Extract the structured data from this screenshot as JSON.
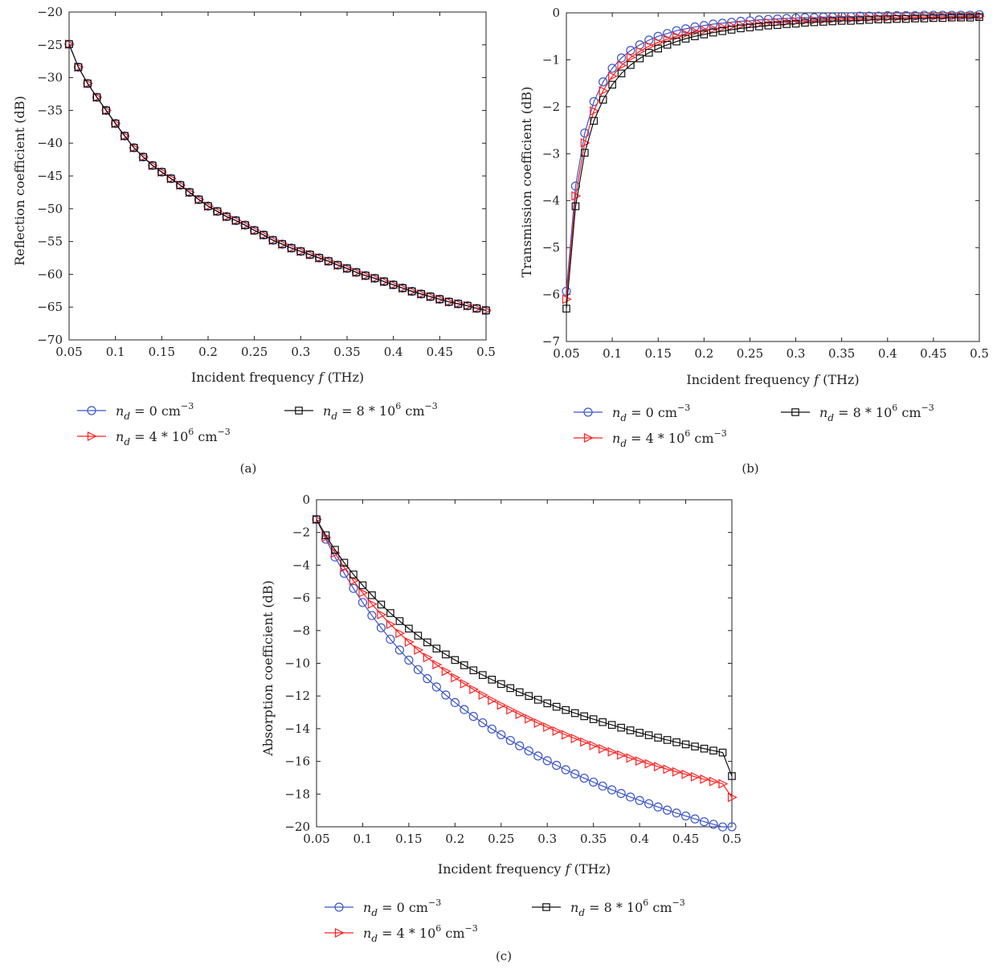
{
  "colors": {
    "nd0": "#3b55c9",
    "nd4": "#ff2020",
    "nd8": "#111111",
    "axis": "#222222"
  },
  "legend": {
    "var": "n",
    "sub": "d",
    "nd0": {
      "eq": " = 0 cm",
      "sup": "−3",
      "tail": ""
    },
    "nd4": {
      "eq": " = 4 * 10",
      "sup": "6",
      "tail": " cm",
      "sup2": "−3"
    },
    "nd8": {
      "eq": " = 8 * 10",
      "sup": "6",
      "tail": " cm",
      "sup2": "−3"
    }
  },
  "chart_data": [
    {
      "type": "line",
      "panel": "(a)",
      "xlabel": "Incident frequency f (THz)",
      "ylabel": "Reflection coefficient (dB)",
      "xlim": [
        0.05,
        0.5
      ],
      "ylim": [
        -70,
        -20
      ],
      "xticks": [
        "0.05",
        "0.1",
        "0.15",
        "0.2",
        "0.25",
        "0.3",
        "0.35",
        "0.4",
        "0.45",
        "0.5"
      ],
      "yticks": [
        "−20",
        "−25",
        "−30",
        "−35",
        "−40",
        "−45",
        "−50",
        "−55",
        "−60",
        "−65",
        "−70"
      ],
      "legend_position": "below",
      "x": [
        0.05,
        0.06,
        0.07,
        0.08,
        0.09,
        0.1,
        0.11,
        0.12,
        0.13,
        0.14,
        0.15,
        0.16,
        0.17,
        0.18,
        0.19,
        0.2,
        0.21,
        0.22,
        0.23,
        0.24,
        0.25,
        0.26,
        0.27,
        0.28,
        0.29,
        0.3,
        0.31,
        0.32,
        0.33,
        0.34,
        0.35,
        0.36,
        0.37,
        0.38,
        0.39,
        0.4,
        0.41,
        0.42,
        0.43,
        0.44,
        0.45,
        0.46,
        0.47,
        0.48,
        0.49,
        0.5
      ],
      "series": [
        {
          "name": "n_d = 0 cm^-3",
          "key": "nd0",
          "marker": "circle",
          "values": [
            -24.9,
            -28.4,
            -30.9,
            -33.0,
            -35.0,
            -37.0,
            -38.9,
            -40.7,
            -42.1,
            -43.4,
            -44.4,
            -45.4,
            -46.4,
            -47.5,
            -48.6,
            -49.6,
            -50.4,
            -51.2,
            -51.8,
            -52.5,
            -53.3,
            -54.0,
            -54.8,
            -55.4,
            -56.0,
            -56.5,
            -57.0,
            -57.5,
            -58.0,
            -58.6,
            -59.1,
            -59.7,
            -60.2,
            -60.6,
            -61.1,
            -61.6,
            -62.1,
            -62.6,
            -63.0,
            -63.4,
            -63.8,
            -64.2,
            -64.5,
            -64.8,
            -65.2,
            -65.5
          ]
        },
        {
          "name": "n_d = 4 * 10^6 cm^-3",
          "key": "nd4",
          "marker": "triangle-right",
          "values": [
            -24.9,
            -28.4,
            -30.9,
            -33.0,
            -35.0,
            -37.0,
            -38.9,
            -40.7,
            -42.1,
            -43.4,
            -44.4,
            -45.4,
            -46.4,
            -47.5,
            -48.6,
            -49.6,
            -50.4,
            -51.2,
            -51.8,
            -52.5,
            -53.3,
            -54.0,
            -54.8,
            -55.4,
            -56.0,
            -56.5,
            -57.0,
            -57.5,
            -58.0,
            -58.6,
            -59.1,
            -59.7,
            -60.2,
            -60.6,
            -61.1,
            -61.6,
            -62.1,
            -62.6,
            -63.0,
            -63.4,
            -63.8,
            -64.2,
            -64.5,
            -64.8,
            -65.2,
            -65.5
          ]
        },
        {
          "name": "n_d = 8 * 10^6 cm^-3",
          "key": "nd8",
          "marker": "square",
          "values": [
            -24.9,
            -28.4,
            -30.9,
            -33.0,
            -35.0,
            -37.0,
            -38.9,
            -40.7,
            -42.1,
            -43.4,
            -44.4,
            -45.4,
            -46.4,
            -47.5,
            -48.6,
            -49.6,
            -50.4,
            -51.2,
            -51.8,
            -52.5,
            -53.3,
            -54.0,
            -54.8,
            -55.4,
            -56.0,
            -56.5,
            -57.0,
            -57.5,
            -58.0,
            -58.6,
            -59.1,
            -59.7,
            -60.2,
            -60.6,
            -61.1,
            -61.6,
            -62.1,
            -62.6,
            -63.0,
            -63.4,
            -63.8,
            -64.2,
            -64.5,
            -64.8,
            -65.2,
            -65.5
          ]
        }
      ]
    },
    {
      "type": "line",
      "panel": "(b)",
      "xlabel": "Incident frequency f (THz)",
      "ylabel": "Transmission coefficient (dB)",
      "xlim": [
        0.05,
        0.5
      ],
      "ylim": [
        -7,
        0
      ],
      "xticks": [
        "0.05",
        "0.1",
        "0.15",
        "0.2",
        "0.25",
        "0.3",
        "0.35",
        "0.4",
        "0.45",
        "0.5"
      ],
      "yticks": [
        "0",
        "−1",
        "−2",
        "−3",
        "−4",
        "−5",
        "−6",
        "−7"
      ],
      "legend_position": "below",
      "x": [
        0.05,
        0.06,
        0.07,
        0.08,
        0.09,
        0.1,
        0.11,
        0.12,
        0.13,
        0.14,
        0.15,
        0.16,
        0.17,
        0.18,
        0.19,
        0.2,
        0.21,
        0.22,
        0.23,
        0.24,
        0.25,
        0.26,
        0.27,
        0.28,
        0.29,
        0.3,
        0.31,
        0.32,
        0.33,
        0.34,
        0.35,
        0.36,
        0.37,
        0.38,
        0.39,
        0.4,
        0.41,
        0.42,
        0.43,
        0.44,
        0.45,
        0.46,
        0.47,
        0.48,
        0.49,
        0.5
      ],
      "series": [
        {
          "name": "n_d = 0 cm^-3",
          "key": "nd0",
          "marker": "circle",
          "values": [
            -5.93,
            -3.69,
            -2.56,
            -1.89,
            -1.47,
            -1.18,
            -0.96,
            -0.8,
            -0.68,
            -0.58,
            -0.5,
            -0.44,
            -0.38,
            -0.34,
            -0.3,
            -0.27,
            -0.24,
            -0.22,
            -0.2,
            -0.18,
            -0.17,
            -0.15,
            -0.14,
            -0.13,
            -0.12,
            -0.11,
            -0.1,
            -0.1,
            -0.09,
            -0.09,
            -0.08,
            -0.08,
            -0.07,
            -0.07,
            -0.07,
            -0.06,
            -0.06,
            -0.06,
            -0.06,
            -0.05,
            -0.05,
            -0.05,
            -0.05,
            -0.05,
            -0.05,
            -0.04
          ]
        },
        {
          "name": "n_d = 4 * 10^6 cm^-3",
          "key": "nd4",
          "marker": "triangle-right",
          "values": [
            -6.1,
            -3.9,
            -2.77,
            -2.09,
            -1.66,
            -1.35,
            -1.12,
            -0.95,
            -0.82,
            -0.71,
            -0.63,
            -0.56,
            -0.5,
            -0.45,
            -0.4,
            -0.37,
            -0.34,
            -0.31,
            -0.28,
            -0.26,
            -0.24,
            -0.23,
            -0.21,
            -0.2,
            -0.19,
            -0.18,
            -0.17,
            -0.16,
            -0.15,
            -0.14,
            -0.13,
            -0.13,
            -0.12,
            -0.11,
            -0.11,
            -0.1,
            -0.1,
            -0.1,
            -0.09,
            -0.09,
            -0.09,
            -0.08,
            -0.08,
            -0.08,
            -0.07,
            -0.07
          ]
        },
        {
          "name": "n_d = 8 * 10^6 cm^-3",
          "key": "nd8",
          "marker": "square",
          "values": [
            -6.3,
            -4.12,
            -2.98,
            -2.3,
            -1.85,
            -1.53,
            -1.29,
            -1.11,
            -0.97,
            -0.85,
            -0.76,
            -0.68,
            -0.61,
            -0.55,
            -0.5,
            -0.46,
            -0.42,
            -0.39,
            -0.36,
            -0.33,
            -0.31,
            -0.29,
            -0.27,
            -0.26,
            -0.24,
            -0.23,
            -0.21,
            -0.2,
            -0.19,
            -0.18,
            -0.17,
            -0.17,
            -0.16,
            -0.15,
            -0.14,
            -0.14,
            -0.13,
            -0.13,
            -0.12,
            -0.12,
            -0.11,
            -0.11,
            -0.1,
            -0.1,
            -0.1,
            -0.09
          ]
        }
      ]
    },
    {
      "type": "line",
      "panel": "(c)",
      "xlabel": "Incident frequency f (THz)",
      "ylabel": "Absorption coefficient (dB)",
      "xlim": [
        0.05,
        0.5
      ],
      "ylim": [
        -20,
        0
      ],
      "xticks": [
        "0.05",
        "0.1",
        "0.15",
        "0.2",
        "0.25",
        "0.3",
        "0.35",
        "0.4",
        "0.45",
        "0.5"
      ],
      "yticks": [
        "0",
        "−2",
        "−4",
        "−6",
        "−8",
        "−10",
        "−12",
        "−14",
        "−16",
        "−18",
        "−20"
      ],
      "legend_position": "below",
      "x": [
        0.05,
        0.06,
        0.07,
        0.08,
        0.09,
        0.1,
        0.11,
        0.12,
        0.13,
        0.14,
        0.15,
        0.16,
        0.17,
        0.18,
        0.19,
        0.2,
        0.21,
        0.22,
        0.23,
        0.24,
        0.25,
        0.26,
        0.27,
        0.28,
        0.29,
        0.3,
        0.31,
        0.32,
        0.33,
        0.34,
        0.35,
        0.36,
        0.37,
        0.38,
        0.39,
        0.4,
        0.41,
        0.42,
        0.43,
        0.44,
        0.45,
        0.46,
        0.47,
        0.48,
        0.49,
        0.5
      ],
      "series": [
        {
          "name": "n_d = 0 cm^-3",
          "key": "nd0",
          "marker": "circle",
          "values": [
            -1.2,
            -2.41,
            -3.5,
            -4.5,
            -5.42,
            -6.28,
            -7.08,
            -7.83,
            -8.53,
            -9.19,
            -9.81,
            -10.39,
            -10.94,
            -11.45,
            -11.94,
            -12.4,
            -12.83,
            -13.25,
            -13.64,
            -14.02,
            -14.37,
            -14.72,
            -15.05,
            -15.36,
            -15.67,
            -15.96,
            -16.24,
            -16.51,
            -16.77,
            -17.03,
            -17.27,
            -17.51,
            -17.74,
            -17.96,
            -18.18,
            -18.39,
            -18.59,
            -18.79,
            -18.98,
            -19.16,
            -19.34,
            -19.52,
            -19.69,
            -19.85,
            -20.01,
            -20.0
          ]
        },
        {
          "name": "n_d = 4 * 10^6 cm^-3",
          "key": "nd4",
          "marker": "triangle-right",
          "values": [
            -1.2,
            -2.29,
            -3.26,
            -4.15,
            -4.95,
            -5.69,
            -6.38,
            -7.02,
            -7.62,
            -8.17,
            -8.7,
            -9.19,
            -9.65,
            -10.08,
            -10.49,
            -10.88,
            -11.25,
            -11.6,
            -11.94,
            -12.26,
            -12.56,
            -12.85,
            -13.13,
            -13.4,
            -13.66,
            -13.91,
            -14.15,
            -14.38,
            -14.6,
            -14.82,
            -15.03,
            -15.23,
            -15.42,
            -15.61,
            -15.8,
            -15.98,
            -16.15,
            -16.32,
            -16.48,
            -16.64,
            -16.79,
            -16.94,
            -17.09,
            -17.23,
            -17.37,
            -18.2
          ]
        },
        {
          "name": "n_d = 8 * 10^6 cm^-3",
          "key": "nd8",
          "marker": "square",
          "values": [
            -1.2,
            -2.17,
            -3.06,
            -3.85,
            -4.57,
            -5.23,
            -5.84,
            -6.41,
            -6.93,
            -7.42,
            -7.88,
            -8.31,
            -8.72,
            -9.1,
            -9.46,
            -9.8,
            -10.12,
            -10.43,
            -10.72,
            -11.0,
            -11.27,
            -11.52,
            -11.77,
            -12.0,
            -12.23,
            -12.45,
            -12.66,
            -12.86,
            -13.05,
            -13.24,
            -13.42,
            -13.6,
            -13.77,
            -13.94,
            -14.1,
            -14.25,
            -14.4,
            -14.55,
            -14.69,
            -14.83,
            -14.96,
            -15.09,
            -15.22,
            -15.34,
            -15.46,
            -16.9
          ]
        }
      ]
    }
  ]
}
